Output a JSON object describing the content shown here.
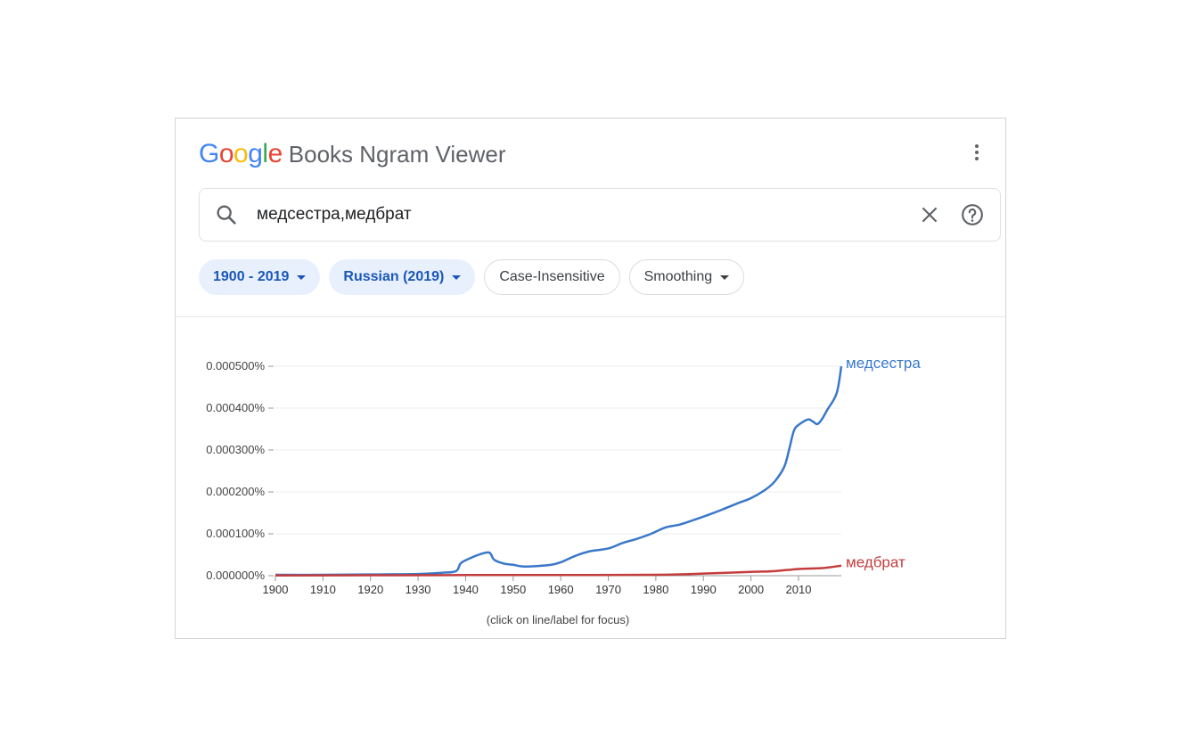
{
  "header": {
    "logo_letters": [
      {
        "char": "G",
        "color": "#4285F4"
      },
      {
        "char": "o",
        "color": "#EA4335"
      },
      {
        "char": "o",
        "color": "#FBBC05"
      },
      {
        "char": "g",
        "color": "#4285F4"
      },
      {
        "char": "l",
        "color": "#34A853"
      },
      {
        "char": "e",
        "color": "#EA4335"
      }
    ],
    "title": "Books Ngram Viewer",
    "menu_icon": "more-vert-icon"
  },
  "search": {
    "value": "медсестра,медбрат",
    "search_icon": "search-icon",
    "clear_icon": "close-icon",
    "help_icon": "help-icon"
  },
  "chips": [
    {
      "label": "1900 - 2019",
      "active": true,
      "dropdown": true
    },
    {
      "label": "Russian (2019)",
      "active": true,
      "dropdown": true
    },
    {
      "label": "Case-Insensitive",
      "active": false,
      "dropdown": false
    },
    {
      "label": "Smoothing",
      "active": false,
      "dropdown": true
    }
  ],
  "chart_data": {
    "type": "line",
    "title": "",
    "xlabel": "",
    "ylabel": "",
    "xlim": [
      1900,
      2019
    ],
    "ylim": [
      0,
      0.0005
    ],
    "y_ticks": [
      "0.000000%",
      "0.000100%",
      "0.000200%",
      "0.000300%",
      "0.000400%",
      "0.000500%"
    ],
    "x_ticks": [
      "1900",
      "1910",
      "1920",
      "1930",
      "1940",
      "1950",
      "1960",
      "1970",
      "1980",
      "1990",
      "2000",
      "2010"
    ],
    "grid": true,
    "note": "(click on line/label for focus)",
    "series": [
      {
        "name": "медсестра",
        "color": "#3a78c9",
        "x": [
          1900,
          1910,
          1920,
          1930,
          1935,
          1938,
          1939,
          1941,
          1943,
          1945,
          1946,
          1948,
          1950,
          1952,
          1955,
          1958,
          1960,
          1963,
          1966,
          1970,
          1973,
          1976,
          1979,
          1982,
          1985,
          1988,
          1991,
          1994,
          1997,
          2000,
          2003,
          2005,
          2007,
          2008,
          2009,
          2010,
          2012,
          2013,
          2014,
          2015,
          2016,
          2018,
          2019
        ],
        "y": [
          2e-06,
          2e-06,
          3e-06,
          4e-06,
          7e-06,
          1.1e-05,
          3e-05,
          4.2e-05,
          5.1e-05,
          5.5e-05,
          3.8e-05,
          2.9e-05,
          2.6e-05,
          2.2e-05,
          2.3e-05,
          2.6e-05,
          3.2e-05,
          4.7e-05,
          5.8e-05,
          6.5e-05,
          7.8e-05,
          8.8e-05,
          0.0001,
          0.000115,
          0.000122,
          0.000133,
          0.000145,
          0.000158,
          0.000172,
          0.000185,
          0.000205,
          0.000225,
          0.00026,
          0.0003,
          0.000345,
          0.00036,
          0.000373,
          0.000368,
          0.000362,
          0.000375,
          0.000395,
          0.000435,
          0.0005
        ]
      },
      {
        "name": "медбрат",
        "color": "#c43c3c",
        "x": [
          1900,
          1920,
          1940,
          1960,
          1980,
          1990,
          2000,
          2005,
          2010,
          2015,
          2019
        ],
        "y": [
          5e-07,
          1e-06,
          1.5e-06,
          1.5e-06,
          2e-06,
          5e-06,
          9e-06,
          1.1e-05,
          1.6e-05,
          1.8e-05,
          2.4e-05
        ]
      }
    ]
  }
}
